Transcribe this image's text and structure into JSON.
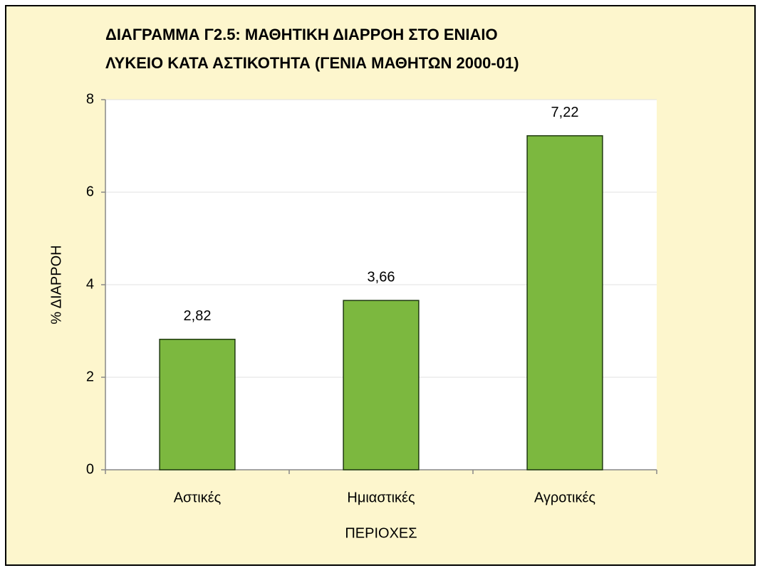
{
  "chart_data": {
    "type": "bar",
    "title": [
      "ΔΙΑΓΡΑΜΜΑ Γ2.5: ΜΑΘΗΤΙΚΗ ΔΙΑΡΡΟΗ ΣΤΟ ΕΝΙΑΙΟ",
      "ΛΥΚΕΙΟ ΚΑΤΑ ΑΣΤΙΚΟΤΗΤΑ (ΓΕΝΙΑ ΜΑΘΗΤΩΝ 2000-01)"
    ],
    "xlabel": "ΠΕΡΙΟΧΕΣ",
    "ylabel": "% ΔΙΑΡΡΟΗ",
    "categories": [
      "Αστικές",
      "Ημιαστικές",
      "Αγροτικές"
    ],
    "values": [
      2.82,
      3.66,
      7.22
    ],
    "value_labels": [
      "2,82",
      "3,66",
      "7,22"
    ],
    "color": "#7cb83f",
    "ylim": [
      0,
      8
    ],
    "yticks": [
      0,
      2,
      4,
      6,
      8
    ],
    "grid": true
  }
}
